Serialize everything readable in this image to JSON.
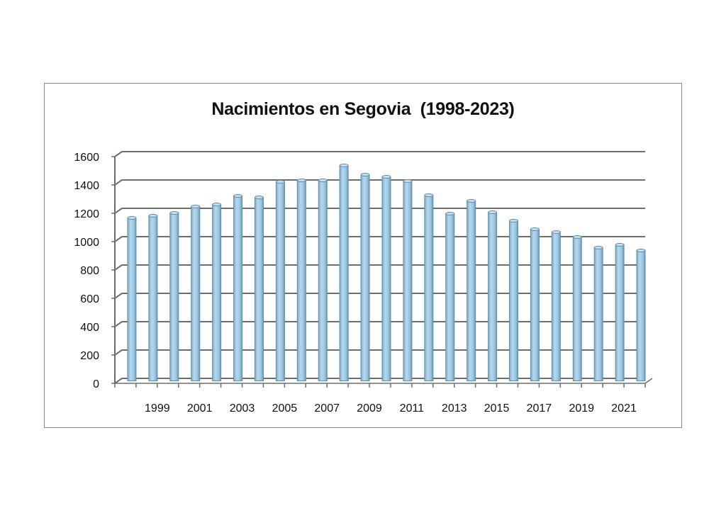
{
  "chart_data": {
    "type": "bar",
    "style": "3d-cylinder",
    "title": "Nacimientos en Segovia  (1998-2023)",
    "xlabel": "",
    "ylabel": "",
    "ylim": [
      0,
      1600
    ],
    "yticks": [
      0,
      200,
      400,
      600,
      800,
      1000,
      1200,
      1400,
      1600
    ],
    "xtick_labels": [
      "1999",
      "2001",
      "2003",
      "2005",
      "2007",
      "2009",
      "2011",
      "2013",
      "2015",
      "2017",
      "2019",
      "2021"
    ],
    "categories": [
      "1998",
      "1999",
      "2000",
      "2001",
      "2002",
      "2003",
      "2004",
      "2005",
      "2006",
      "2007",
      "2008",
      "2009",
      "2010",
      "2011",
      "2012",
      "2013",
      "2014",
      "2015",
      "2016",
      "2017",
      "2018",
      "2019",
      "2020",
      "2021",
      "2022"
    ],
    "values": [
      1150,
      1165,
      1185,
      1230,
      1245,
      1305,
      1295,
      1405,
      1415,
      1415,
      1520,
      1455,
      1440,
      1410,
      1310,
      1180,
      1270,
      1190,
      1130,
      1070,
      1050,
      1015,
      940,
      960,
      920
    ],
    "grid": true,
    "legend": "none",
    "colors": {
      "bar": "#9ec8e2",
      "bar_edge": "#5f8fae",
      "grid": "#6e6e6e"
    }
  }
}
